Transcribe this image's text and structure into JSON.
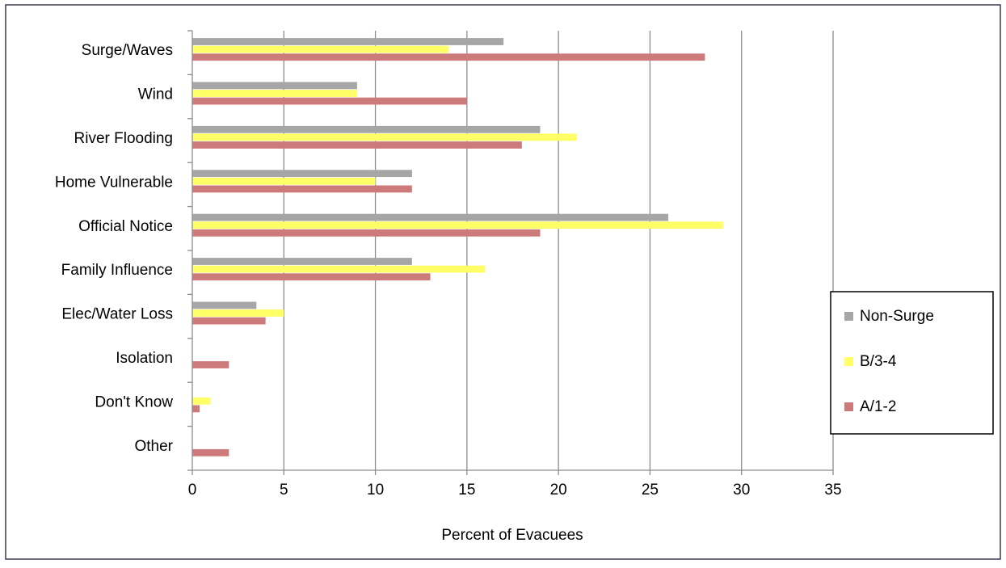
{
  "chart_data": {
    "type": "bar",
    "orientation": "horizontal",
    "title": "",
    "xlabel": "Percent of Evacuees",
    "ylabel": "",
    "xlim": [
      0,
      35
    ],
    "x_ticks": [
      "0",
      "5",
      "10",
      "15",
      "20",
      "25",
      "30",
      "35"
    ],
    "categories": [
      "Surge/Waves",
      "Wind",
      "River Flooding",
      "Home Vulnerable",
      "Official Notice",
      "Family Influence",
      "Elec/Water Loss",
      "Isolation",
      "Don't Know",
      "Other"
    ],
    "series": [
      {
        "name": "Non-Surge",
        "color": "#a6a6a6",
        "values": [
          17,
          9,
          19,
          12,
          26,
          12,
          3.5,
          0,
          0,
          0
        ]
      },
      {
        "name": "B/3-4",
        "color": "#ffff66",
        "values": [
          14,
          9,
          21,
          10,
          29,
          16,
          5,
          0,
          1,
          0
        ]
      },
      {
        "name": "A/1-2",
        "color": "#cc7a7a",
        "values": [
          28,
          15,
          18,
          12,
          19,
          13,
          4,
          2,
          0.4,
          2
        ]
      }
    ],
    "grid": "vertical",
    "legend_position": "right"
  }
}
